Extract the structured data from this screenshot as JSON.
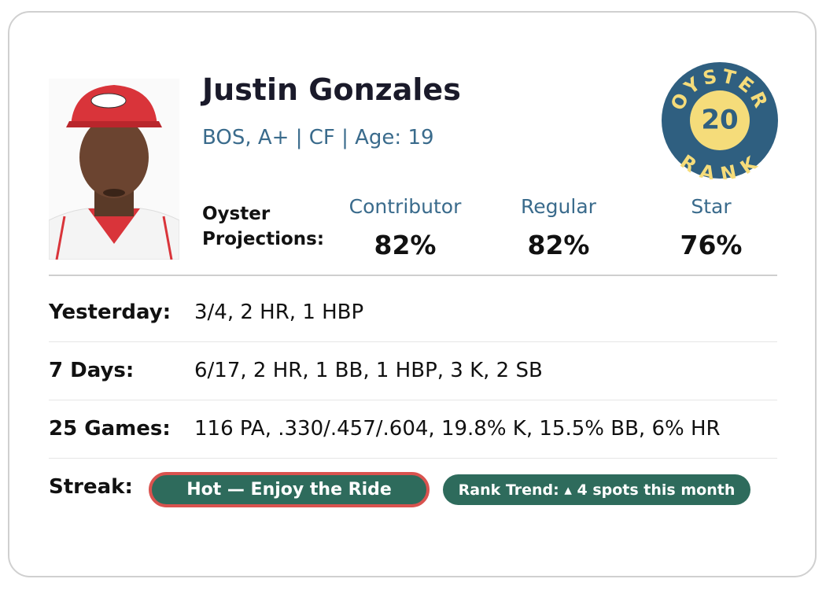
{
  "player": {
    "name": "Justin Gonzales",
    "info": "BOS, A+ | CF | Age: 19"
  },
  "badge": {
    "top": "OYSTER",
    "rank": "20",
    "bottom": "RANK"
  },
  "projections": {
    "label": "Oyster Projections:",
    "columns": [
      {
        "label": "Contributor",
        "value": "82%"
      },
      {
        "label": "Regular",
        "value": "82%"
      },
      {
        "label": "Star",
        "value": "76%"
      }
    ]
  },
  "stats": [
    {
      "label": "Yesterday:",
      "value": "3/4, 2 HR, 1 HBP"
    },
    {
      "label": "7 Days:",
      "value": "6/17, 2 HR, 1 BB, 1 HBP, 3 K, 2 SB"
    },
    {
      "label": "25 Games:",
      "value": "116 PA, .330/.457/.604, 19.8% K, 15.5% BB, 6% HR"
    }
  ],
  "streak": {
    "label": "Streak:",
    "status": "Hot — Enjoy the Ride",
    "trend": "Rank Trend: ▴ 4 spots this month"
  }
}
